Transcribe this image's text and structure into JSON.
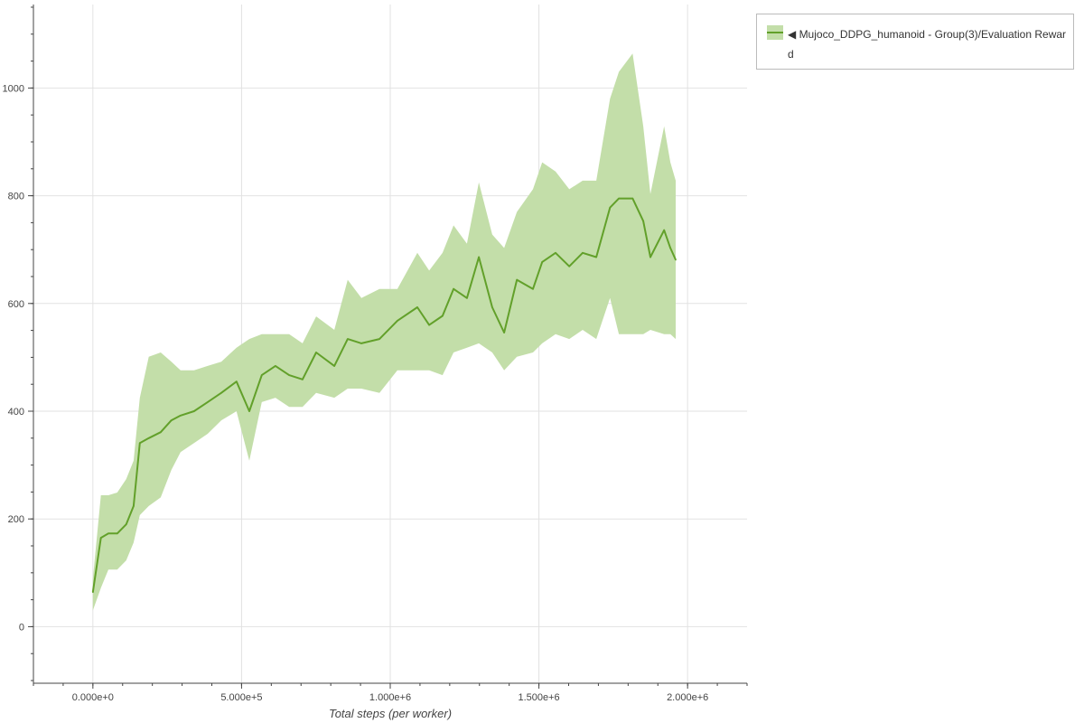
{
  "chart_data": {
    "type": "line",
    "xlabel": "Total steps (per worker)",
    "ylabel": "",
    "xlim": [
      -200000,
      2200000
    ],
    "ylim": [
      -105,
      1155
    ],
    "grid": true,
    "legend_placement": "outside-top-right",
    "x_ticks": [
      0,
      500000,
      1000000,
      1500000,
      2000000
    ],
    "x_tick_labels": [
      "0.000e+0",
      "5.000e+5",
      "1.000e+6",
      "1.500e+6",
      "2.000e+6"
    ],
    "y_ticks": [
      0,
      200,
      400,
      600,
      800,
      1000
    ],
    "y_tick_labels": [
      "0",
      "200",
      "400",
      "600",
      "800",
      "1000"
    ],
    "series": [
      {
        "name": "◀ Mujoco_DDPG_humanoid - Group(3)/Evaluation Reward",
        "color": "#62a02a",
        "band_color": "#c3dea9",
        "x": [
          0,
          27000,
          52000,
          82000,
          112000,
          137000,
          158000,
          188000,
          228000,
          264000,
          295000,
          340000,
          386000,
          432000,
          483000,
          526000,
          568000,
          614000,
          660000,
          705000,
          751000,
          812000,
          857000,
          903000,
          964000,
          1024000,
          1091000,
          1131000,
          1176000,
          1213000,
          1258000,
          1298000,
          1343000,
          1383000,
          1426000,
          1480000,
          1511000,
          1556000,
          1602000,
          1647000,
          1693000,
          1739000,
          1769000,
          1815000,
          1851000,
          1875000,
          1921000,
          1942000,
          1960000
        ],
        "mean": [
          64,
          165,
          173,
          173,
          190,
          224,
          341,
          350,
          361,
          383,
          392,
          400,
          417,
          434,
          455,
          400,
          467,
          484,
          467,
          459,
          509,
          484,
          534,
          526,
          534,
          568,
          593,
          560,
          577,
          627,
          610,
          686,
          593,
          546,
          644,
          627,
          677,
          694,
          669,
          694,
          686,
          778,
          795,
          795,
          753,
          686,
          736,
          703,
          681
        ],
        "upper": [
          89,
          244,
          244,
          249,
          274,
          308,
          425,
          501,
          509,
          492,
          476,
          476,
          484,
          492,
          518,
          534,
          543,
          543,
          543,
          526,
          576,
          551,
          644,
          610,
          627,
          627,
          694,
          661,
          694,
          745,
          711,
          825,
          728,
          703,
          770,
          812,
          862,
          845,
          812,
          828,
          828,
          980,
          1030,
          1064,
          929,
          803,
          929,
          862,
          828
        ],
        "lower": [
          30,
          72,
          106,
          106,
          123,
          156,
          207,
          224,
          240,
          291,
          324,
          341,
          358,
          383,
          400,
          308,
          417,
          425,
          408,
          408,
          434,
          425,
          442,
          442,
          434,
          476,
          476,
          476,
          467,
          509,
          518,
          526,
          509,
          476,
          501,
          509,
          526,
          543,
          534,
          551,
          534,
          610,
          543,
          543,
          543,
          551,
          543,
          543,
          534
        ]
      }
    ]
  }
}
